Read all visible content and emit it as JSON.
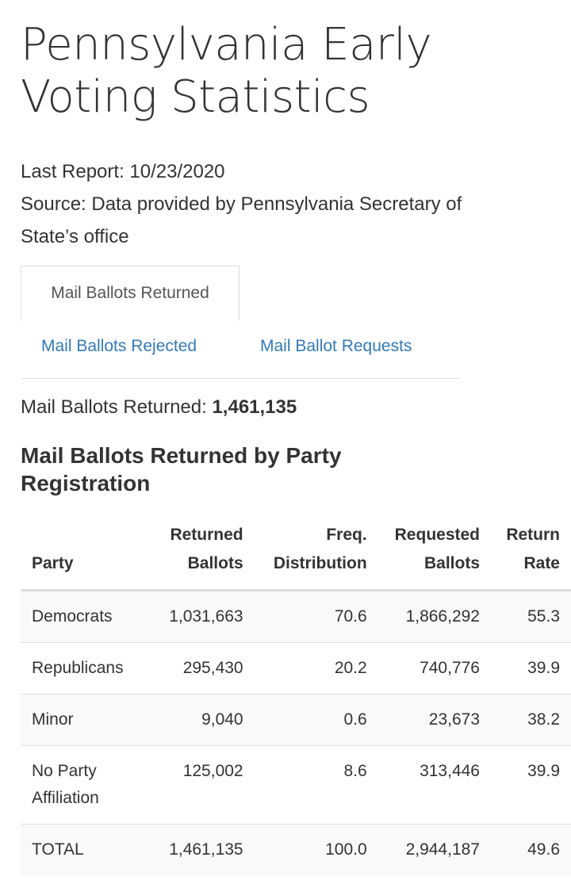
{
  "page": {
    "title": "Pennsylvania Early Voting Statistics",
    "last_report": "Last Report: 10/23/2020",
    "source": "Source: Data provided by Pennsylvania Secretary of State’s office"
  },
  "tabs": {
    "active": "Mail Ballots Returned",
    "rejected": "Mail Ballots Rejected",
    "requests": "Mail Ballot Requests"
  },
  "summary": {
    "label": "Mail Ballots Returned: ",
    "value": "1,461,135"
  },
  "section": {
    "title": "Mail Ballots Returned by Party Registration"
  },
  "table": {
    "headers": {
      "party": "Party",
      "returned": "Returned Ballots",
      "freq": "Freq. Distribution",
      "requested": "Requested Ballots",
      "rate": "Return Rate"
    },
    "rows": [
      {
        "party": "Democrats",
        "returned": "1,031,663",
        "freq": "70.6",
        "requested": "1,866,292",
        "rate": "55.3"
      },
      {
        "party": "Republicans",
        "returned": "295,430",
        "freq": "20.2",
        "requested": "740,776",
        "rate": "39.9"
      },
      {
        "party": "Minor",
        "returned": "9,040",
        "freq": "0.6",
        "requested": "23,673",
        "rate": "38.2"
      },
      {
        "party": "No Party Affiliation",
        "returned": "125,002",
        "freq": "8.6",
        "requested": "313,446",
        "rate": "39.9"
      },
      {
        "party": "TOTAL",
        "returned": "1,461,135",
        "freq": "100.0",
        "requested": "2,944,187",
        "rate": "49.6"
      }
    ]
  }
}
